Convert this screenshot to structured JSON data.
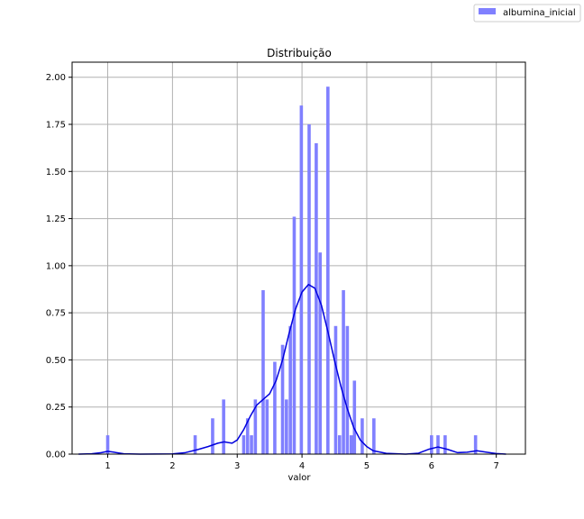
{
  "chart_data": {
    "type": "bar",
    "title": "Distribuição",
    "xlabel": "valor",
    "ylabel": "",
    "xlim": [
      0.45,
      7.45
    ],
    "ylim": [
      0,
      2.08
    ],
    "xticks": [
      1,
      2,
      3,
      4,
      5,
      6,
      7
    ],
    "xtick_labels": [
      "1",
      "2",
      "3",
      "4",
      "5",
      "6",
      "7"
    ],
    "yticks": [
      0,
      0.25,
      0.5,
      0.75,
      1.0,
      1.25,
      1.5,
      1.75,
      2.0
    ],
    "ytick_labels": [
      "0.00",
      "0.25",
      "0.50",
      "0.75",
      "1.00",
      "1.25",
      "1.50",
      "1.75",
      "2.00"
    ],
    "grid": true,
    "legend_position": "top-right",
    "bar_color": "#8080ff",
    "line_color": "#0000dd",
    "series": [
      {
        "name": "albumina_inicial",
        "kind": "histogram",
        "bin_width": 0.05,
        "bars": [
          {
            "x": 1.0,
            "y": 0.1
          },
          {
            "x": 2.35,
            "y": 0.1
          },
          {
            "x": 2.62,
            "y": 0.19
          },
          {
            "x": 2.79,
            "y": 0.29
          },
          {
            "x": 3.1,
            "y": 0.1
          },
          {
            "x": 3.16,
            "y": 0.19
          },
          {
            "x": 3.22,
            "y": 0.1
          },
          {
            "x": 3.28,
            "y": 0.29
          },
          {
            "x": 3.4,
            "y": 0.87
          },
          {
            "x": 3.46,
            "y": 0.29
          },
          {
            "x": 3.58,
            "y": 0.49
          },
          {
            "x": 3.7,
            "y": 0.58
          },
          {
            "x": 3.76,
            "y": 0.29
          },
          {
            "x": 3.82,
            "y": 0.68
          },
          {
            "x": 3.88,
            "y": 1.26
          },
          {
            "x": 3.99,
            "y": 1.85
          },
          {
            "x": 4.11,
            "y": 1.75
          },
          {
            "x": 4.22,
            "y": 1.65
          },
          {
            "x": 4.28,
            "y": 1.07
          },
          {
            "x": 4.4,
            "y": 1.95
          },
          {
            "x": 4.52,
            "y": 0.68
          },
          {
            "x": 4.58,
            "y": 0.1
          },
          {
            "x": 4.64,
            "y": 0.87
          },
          {
            "x": 4.7,
            "y": 0.68
          },
          {
            "x": 4.76,
            "y": 0.1
          },
          {
            "x": 4.81,
            "y": 0.39
          },
          {
            "x": 4.93,
            "y": 0.19
          },
          {
            "x": 5.11,
            "y": 0.19
          },
          {
            "x": 6.0,
            "y": 0.1
          },
          {
            "x": 6.1,
            "y": 0.1
          },
          {
            "x": 6.21,
            "y": 0.1
          },
          {
            "x": 6.68,
            "y": 0.1
          }
        ],
        "kde": [
          [
            0.55,
            0.0
          ],
          [
            0.75,
            0.002
          ],
          [
            0.9,
            0.008
          ],
          [
            1.0,
            0.015
          ],
          [
            1.1,
            0.01
          ],
          [
            1.25,
            0.002
          ],
          [
            1.5,
            0.0
          ],
          [
            2.0,
            0.001
          ],
          [
            2.2,
            0.008
          ],
          [
            2.4,
            0.025
          ],
          [
            2.55,
            0.04
          ],
          [
            2.7,
            0.058
          ],
          [
            2.8,
            0.065
          ],
          [
            2.92,
            0.058
          ],
          [
            3.0,
            0.075
          ],
          [
            3.1,
            0.13
          ],
          [
            3.2,
            0.2
          ],
          [
            3.3,
            0.26
          ],
          [
            3.4,
            0.29
          ],
          [
            3.5,
            0.32
          ],
          [
            3.6,
            0.39
          ],
          [
            3.7,
            0.5
          ],
          [
            3.8,
            0.64
          ],
          [
            3.9,
            0.77
          ],
          [
            4.0,
            0.86
          ],
          [
            4.1,
            0.9
          ],
          [
            4.2,
            0.88
          ],
          [
            4.3,
            0.79
          ],
          [
            4.4,
            0.65
          ],
          [
            4.5,
            0.5
          ],
          [
            4.6,
            0.36
          ],
          [
            4.7,
            0.24
          ],
          [
            4.8,
            0.14
          ],
          [
            4.9,
            0.075
          ],
          [
            5.0,
            0.04
          ],
          [
            5.1,
            0.018
          ],
          [
            5.3,
            0.004
          ],
          [
            5.6,
            0.0
          ],
          [
            5.8,
            0.005
          ],
          [
            5.95,
            0.025
          ],
          [
            6.1,
            0.038
          ],
          [
            6.25,
            0.025
          ],
          [
            6.4,
            0.008
          ],
          [
            6.55,
            0.01
          ],
          [
            6.7,
            0.018
          ],
          [
            6.85,
            0.01
          ],
          [
            7.0,
            0.003
          ],
          [
            7.15,
            0.0
          ]
        ]
      }
    ]
  }
}
